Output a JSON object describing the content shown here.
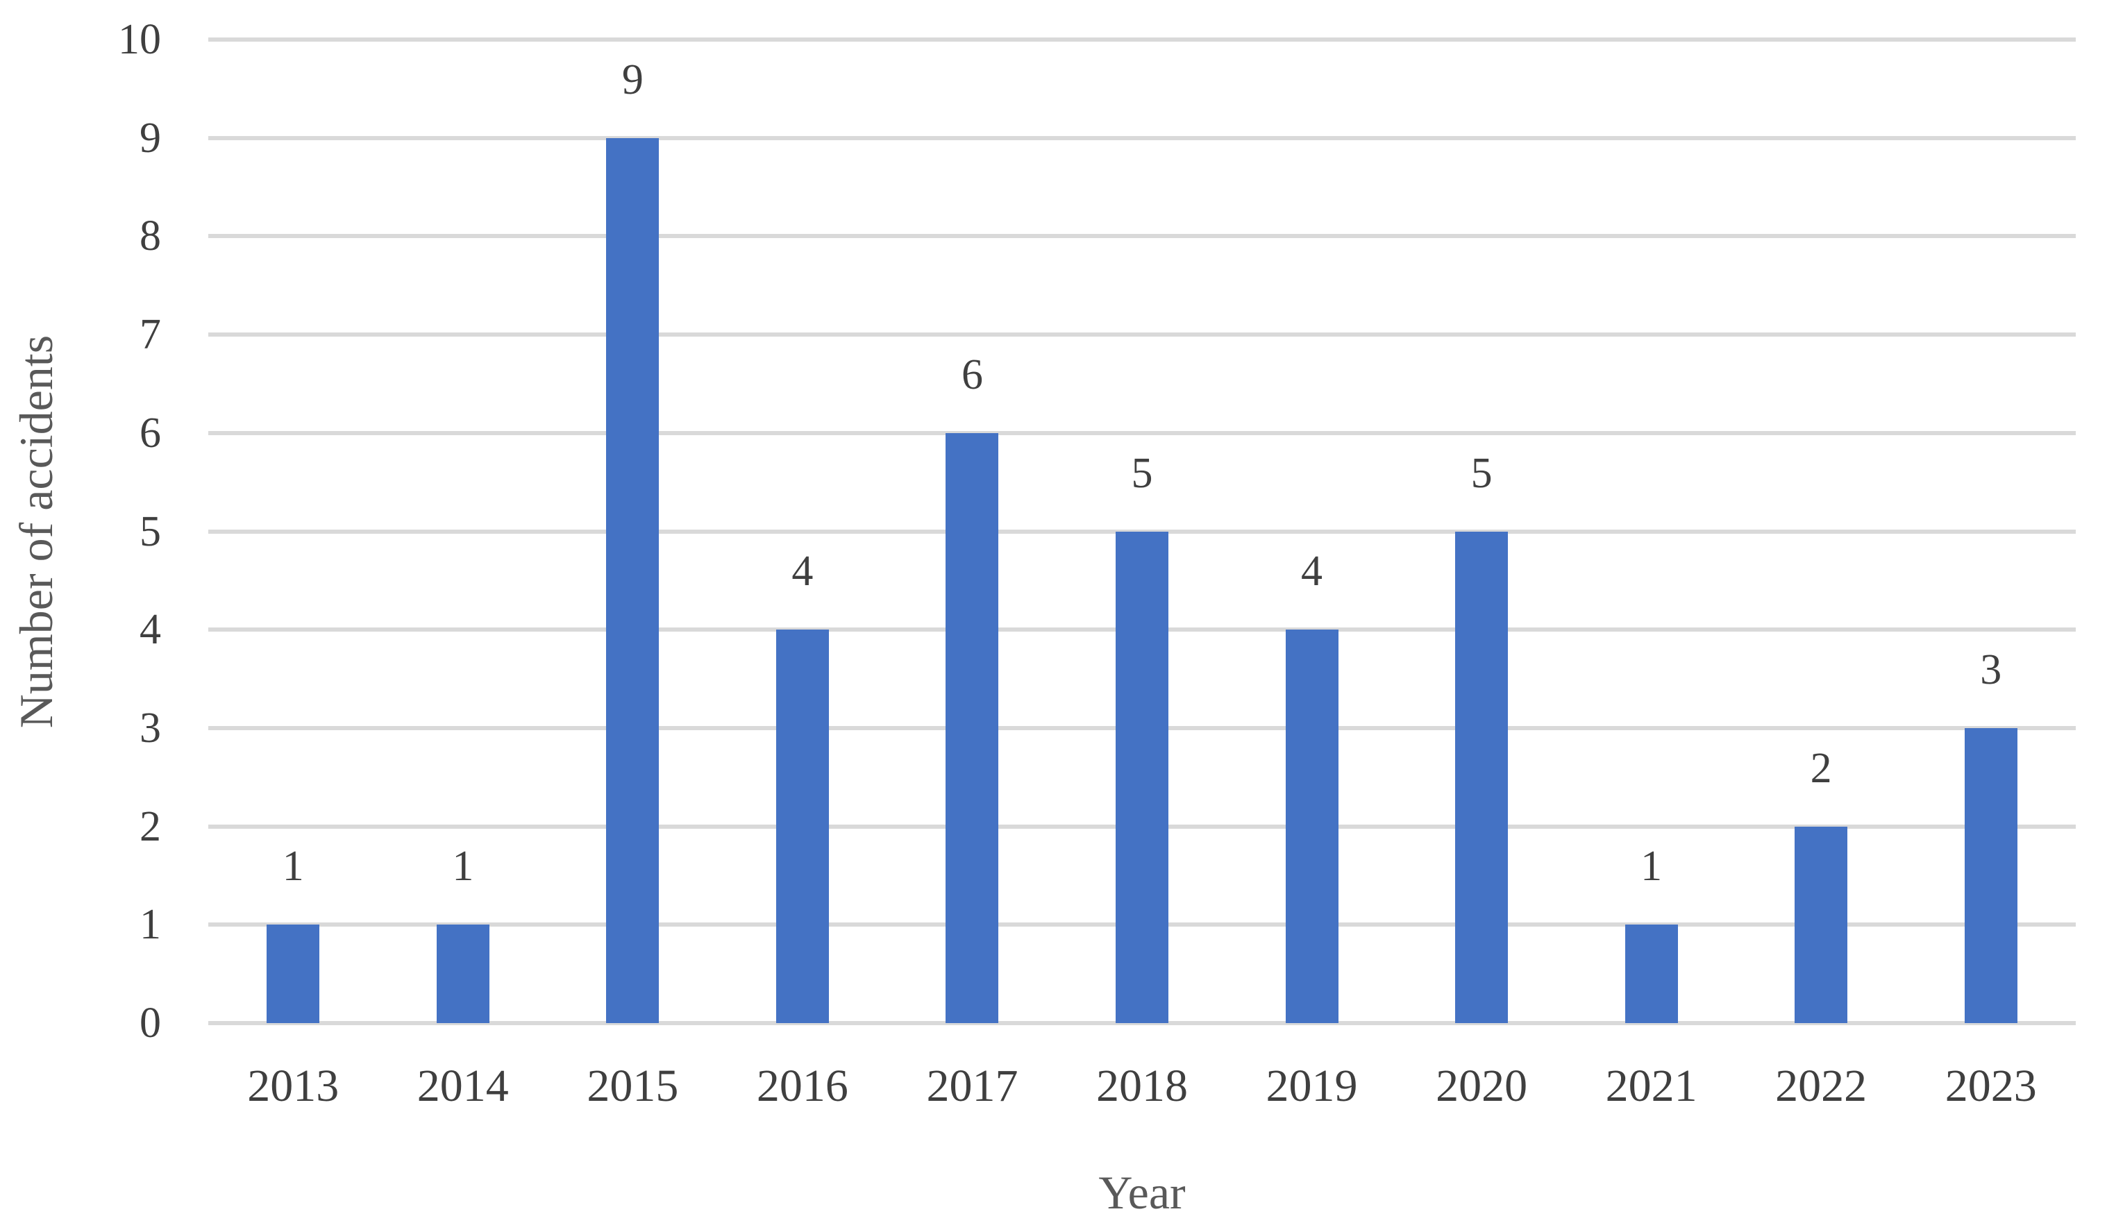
{
  "chart_data": {
    "type": "bar",
    "title": "",
    "categories": [
      "2013",
      "2014",
      "2015",
      "2016",
      "2017",
      "2018",
      "2019",
      "2020",
      "2021",
      "2022",
      "2023"
    ],
    "values": [
      1,
      1,
      9,
      4,
      6,
      5,
      4,
      5,
      1,
      2,
      3
    ],
    "data_labels": [
      "1",
      "1",
      "9",
      "4",
      "6",
      "5",
      "4",
      "5",
      "1",
      "2",
      "3"
    ],
    "xlabel": "Year",
    "ylabel": "Number of accidents",
    "ylim": [
      0,
      10
    ],
    "yticks": [
      0,
      1,
      2,
      3,
      4,
      5,
      6,
      7,
      8,
      9,
      10
    ],
    "grid": true,
    "legend": false,
    "colors": {
      "bar": "#4472c4",
      "gridline": "#d9d9d9",
      "tick_text": "#3f3f3f",
      "axis_title_text": "#595959",
      "background": "#ffffff"
    }
  }
}
